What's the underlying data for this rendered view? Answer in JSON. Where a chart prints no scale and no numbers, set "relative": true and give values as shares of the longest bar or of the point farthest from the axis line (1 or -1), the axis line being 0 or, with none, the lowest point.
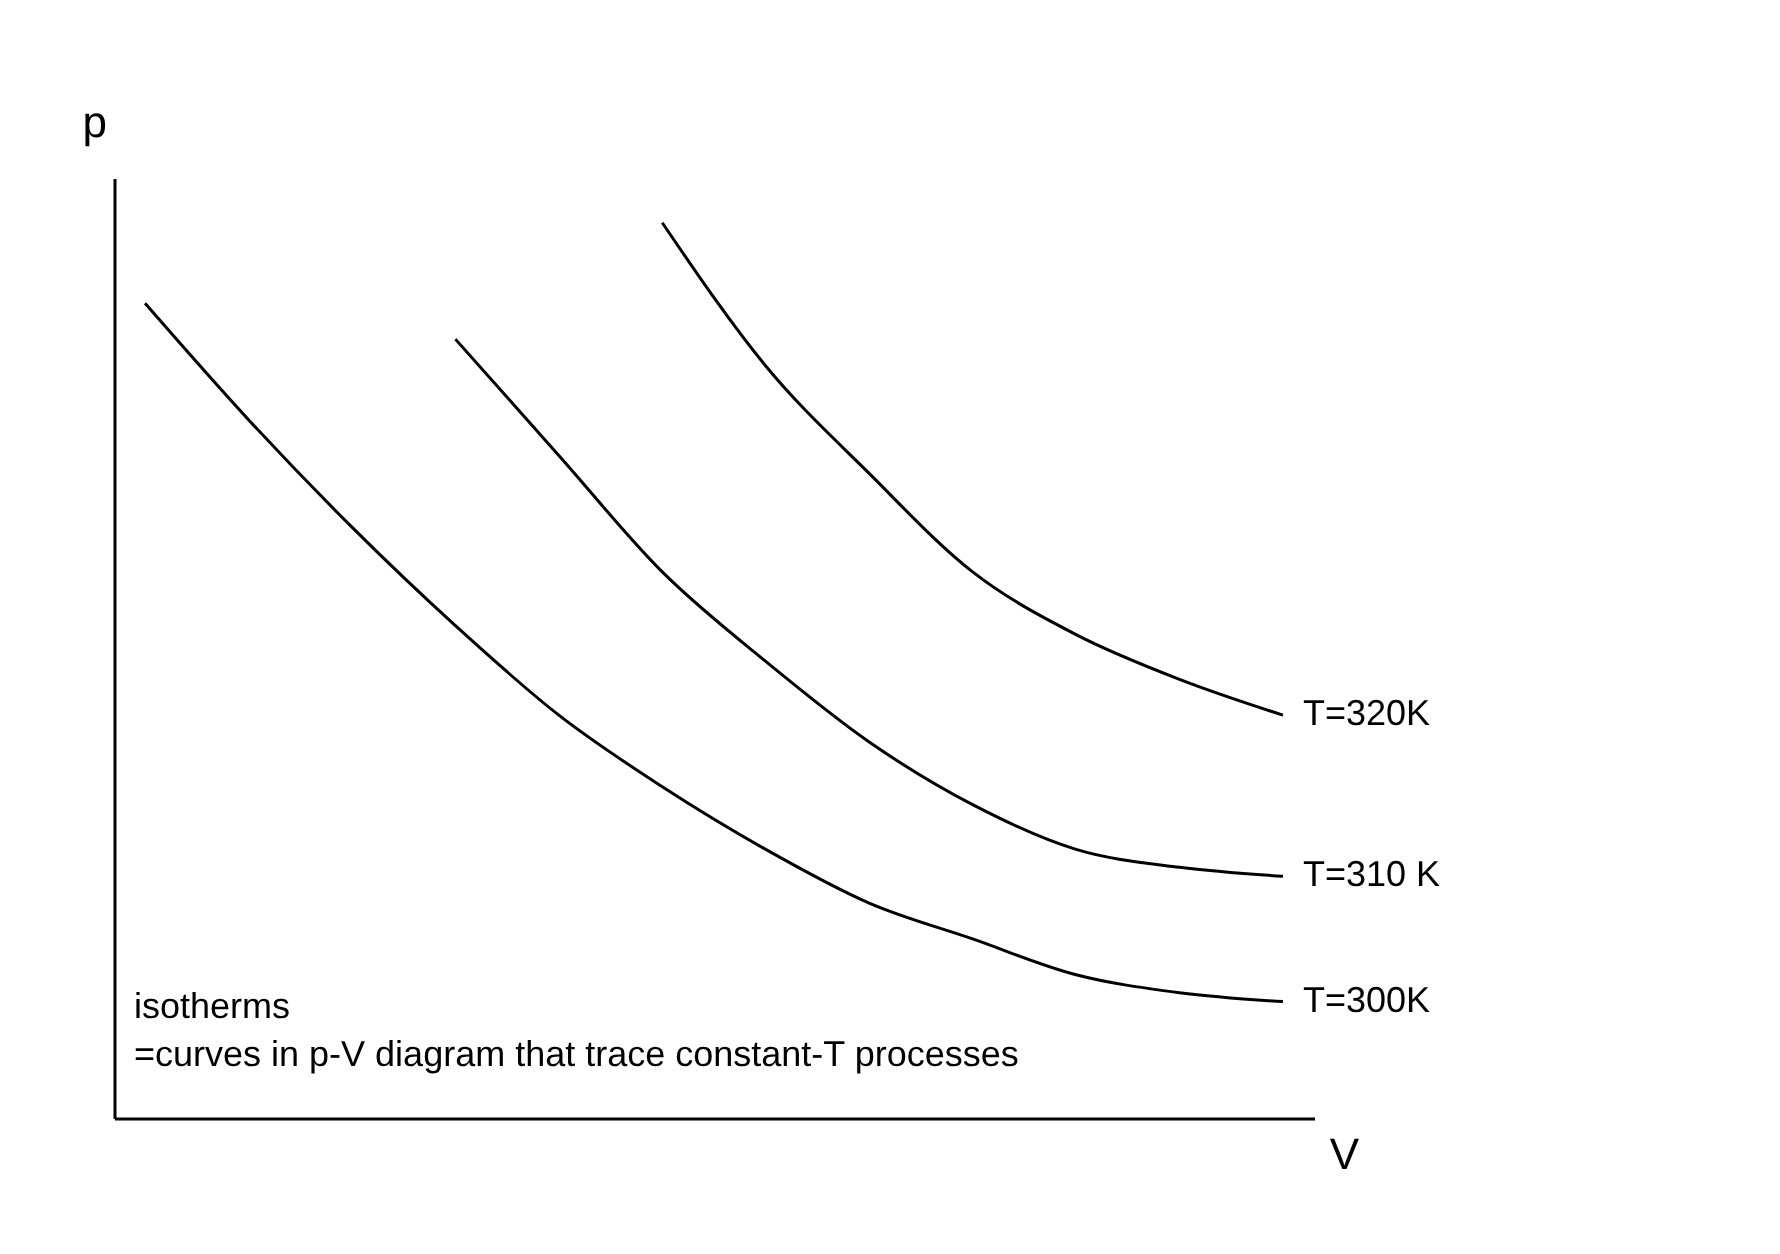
{
  "chart_data": {
    "type": "line",
    "relative": true,
    "xlabel": "V",
    "ylabel": "p",
    "legend": false,
    "grid": false,
    "marker": "none",
    "categories": [
      null,
      null,
      null,
      null,
      null,
      null,
      null,
      null,
      null,
      null,
      null,
      null
    ],
    "series": [
      {
        "name": "T=320K",
        "color": "#000000",
        "values": [
          null,
          null,
          null,
          null,
          null,
          1,
          0.84,
          0.72,
          0.61,
          0.54,
          0.49,
          0.45
        ]
      },
      {
        "name": "T=310 K",
        "color": "#000000",
        "values": [
          null,
          null,
          null,
          0.87,
          0.74,
          0.61,
          0.51,
          0.42,
          0.35,
          0.3,
          0.28,
          0.27
        ]
      },
      {
        "name": "T=300K",
        "color": "#000000",
        "values": [
          0.91,
          0.78,
          0.66,
          0.55,
          0.45,
          0.37,
          0.3,
          0.24,
          0.2,
          0.16,
          0.14,
          0.13
        ]
      }
    ],
    "annotations": [
      "isotherms",
      "=curves in p-V diagram that trace constant-T processes"
    ]
  }
}
